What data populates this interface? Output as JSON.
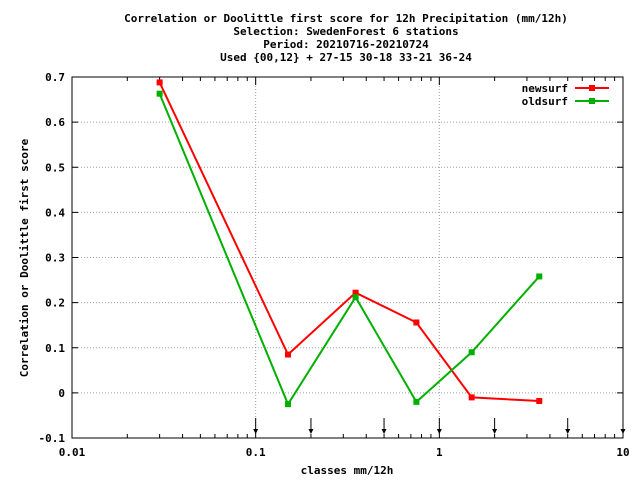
{
  "chart_data": {
    "type": "line",
    "title": [
      "Correlation or Doolittle first score  for 12h Precipitation (mm/12h)",
      "Selection: SwedenForest      6 stations",
      "Period: 20210716-20210724",
      "Used {00,12} + 27-15 30-18 33-21 36-24"
    ],
    "xlabel": "classes mm/12h",
    "ylabel": "Correlation or Doolittle first score",
    "xscale": "log",
    "xlim": [
      0.01,
      10
    ],
    "ylim": [
      -0.1,
      0.7
    ],
    "xticks": [
      {
        "value": 0.01,
        "label": "0.01"
      },
      {
        "value": 0.1,
        "label": "0.1"
      },
      {
        "value": 1,
        "label": "1"
      },
      {
        "value": 10,
        "label": "10"
      }
    ],
    "yticks": [
      {
        "value": -0.1,
        "label": "-0.1"
      },
      {
        "value": 0,
        "label": "0"
      },
      {
        "value": 0.1,
        "label": "0.1"
      },
      {
        "value": 0.2,
        "label": "0.2"
      },
      {
        "value": 0.3,
        "label": "0.3"
      },
      {
        "value": 0.4,
        "label": "0.4"
      },
      {
        "value": 0.5,
        "label": "0.5"
      },
      {
        "value": 0.6,
        "label": "0.6"
      },
      {
        "value": 0.7,
        "label": "0.7"
      }
    ],
    "grid": true,
    "legend_position": "top-right",
    "class_limits": [
      0.1,
      0.2,
      0.5,
      1,
      2,
      5,
      10
    ],
    "series": [
      {
        "name": "newsurf",
        "color": "#ff0000",
        "x": [
          0.03,
          0.15,
          0.35,
          0.75,
          1.5,
          3.5
        ],
        "y": [
          0.688,
          0.085,
          0.222,
          0.156,
          -0.01,
          -0.018
        ]
      },
      {
        "name": "oldsurf",
        "color": "#00b000",
        "x": [
          0.03,
          0.15,
          0.35,
          0.75,
          1.5,
          3.5
        ],
        "y": [
          0.663,
          -0.025,
          0.212,
          -0.02,
          0.09,
          0.258
        ]
      }
    ]
  }
}
